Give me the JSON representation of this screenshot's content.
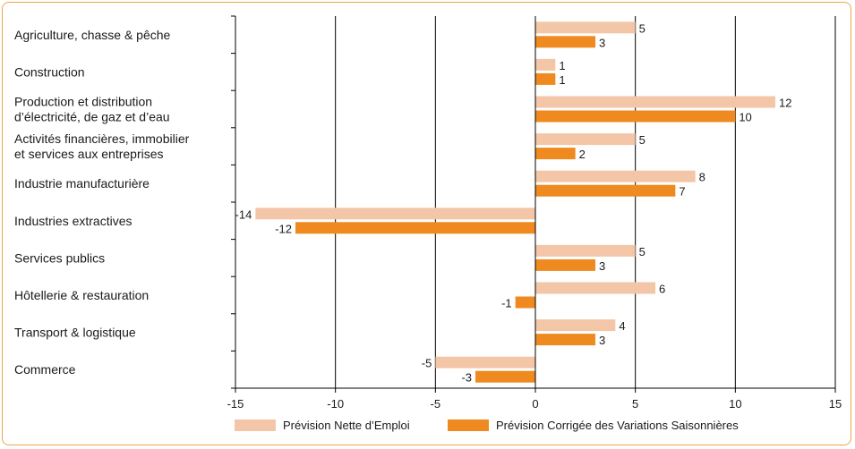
{
  "chart_data": {
    "type": "bar",
    "orientation": "horizontal",
    "categories": [
      [
        "Agriculture, chasse & pêche"
      ],
      [
        "Construction"
      ],
      [
        "Production et distribution",
        "d’électricité, de gaz et d’eau"
      ],
      [
        "Activités financières, immobilier",
        "et services aux entreprises"
      ],
      [
        "Industrie manufacturière"
      ],
      [
        "Industries extractives"
      ],
      [
        "Services publics"
      ],
      [
        "Hôtellerie & restauration"
      ],
      [
        "Transport & logistique"
      ],
      [
        "Commerce"
      ]
    ],
    "series": [
      {
        "name": "Prévision Nette d’Emploi",
        "color": "#f4c6a8",
        "values": [
          5,
          1,
          12,
          5,
          8,
          -14,
          5,
          6,
          4,
          -5
        ]
      },
      {
        "name": "Prévision Corrigée des Variations Saisonnières",
        "color": "#ee8a1f",
        "values": [
          3,
          1,
          10,
          2,
          7,
          -12,
          3,
          -1,
          3,
          -3
        ]
      }
    ],
    "xlim": [
      -15,
      15
    ],
    "xticks": [
      "-15",
      "-10",
      "-5",
      "0",
      "5",
      "10",
      "15"
    ],
    "xtick_values": [
      -15,
      -10,
      -5,
      0,
      5,
      10,
      15
    ],
    "grid": "vertical",
    "legend": "bottom-center"
  }
}
